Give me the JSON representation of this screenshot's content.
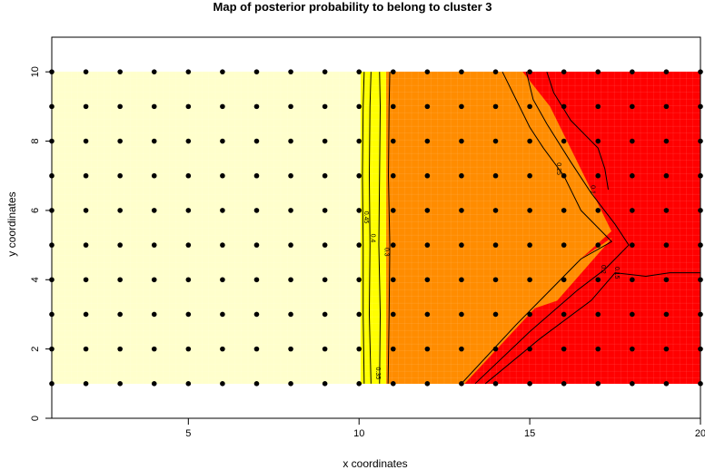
{
  "chart_data": {
    "type": "heatmap",
    "title": "Map of posterior probability to belong to cluster  3",
    "xlabel": "x coordinates",
    "ylabel": "y coordinates",
    "xlim": [
      1,
      20
    ],
    "ylim": [
      0,
      11
    ],
    "x_ticks": [
      5,
      10,
      15,
      20
    ],
    "y_ticks": [
      0,
      2,
      4,
      6,
      8,
      10
    ],
    "grid_extent": {
      "x": [
        1,
        20
      ],
      "y": [
        1,
        10
      ]
    },
    "points": {
      "x": [
        1,
        2,
        3,
        4,
        5,
        6,
        7,
        8,
        9,
        10,
        11,
        12,
        13,
        14,
        15,
        16,
        17,
        18,
        19,
        20
      ],
      "y": [
        1,
        2,
        3,
        4,
        5,
        6,
        7,
        8,
        9,
        10
      ]
    },
    "regions": [
      {
        "name": "lowest",
        "color": "#FFFFCC",
        "polygon": [
          [
            1,
            1
          ],
          [
            10.05,
            1
          ],
          [
            10.05,
            10
          ],
          [
            1,
            10
          ]
        ]
      },
      {
        "name": "low",
        "color": "#FFFF00",
        "polygon": [
          [
            10.05,
            1
          ],
          [
            10.8,
            1
          ],
          [
            10.8,
            10
          ],
          [
            10.05,
            10
          ]
        ]
      },
      {
        "name": "mid",
        "color": "#FF8C00",
        "polygon": [
          [
            10.8,
            1
          ],
          [
            13.1,
            1
          ],
          [
            16.5,
            4.6
          ],
          [
            17.4,
            5.4
          ],
          [
            15.6,
            9
          ],
          [
            14.8,
            10
          ],
          [
            10.8,
            10
          ]
        ]
      },
      {
        "name": "high",
        "color": "#FF0000",
        "polygon": [
          [
            13.1,
            1
          ],
          [
            20,
            1
          ],
          [
            20,
            10
          ],
          [
            14.8,
            10
          ],
          [
            15.6,
            9
          ],
          [
            17.4,
            5.4
          ],
          [
            16.5,
            4.6
          ]
        ]
      },
      {
        "name": "mid-wedge-1",
        "color": "#FF8C00",
        "polygon": [
          [
            14.6,
            3
          ],
          [
            15.8,
            3.4
          ],
          [
            17.4,
            5.2
          ],
          [
            16.2,
            4.4
          ]
        ]
      },
      {
        "name": "mid-wedge-2",
        "color": "#FF8C00",
        "polygon": [
          [
            15.2,
            8.5
          ],
          [
            15.6,
            8.4
          ],
          [
            15.4,
            8.8
          ]
        ]
      }
    ],
    "contours": [
      {
        "label": "0.45",
        "points": [
          [
            10.15,
            1
          ],
          [
            10.12,
            3
          ],
          [
            10.12,
            5
          ],
          [
            10.1,
            7
          ],
          [
            10.12,
            9
          ],
          [
            10.15,
            10
          ]
        ],
        "label_at": [
          10.15,
          5.8
        ]
      },
      {
        "label": "0.4",
        "points": [
          [
            10.35,
            1
          ],
          [
            10.3,
            3
          ],
          [
            10.32,
            5
          ],
          [
            10.3,
            7
          ],
          [
            10.32,
            9
          ],
          [
            10.35,
            10
          ]
        ],
        "label_at": [
          10.35,
          5.2
        ]
      },
      {
        "label": "0.35",
        "points": [
          [
            10.6,
            1
          ],
          [
            10.62,
            3
          ],
          [
            10.58,
            5
          ],
          [
            10.6,
            7
          ],
          [
            10.62,
            9
          ],
          [
            10.6,
            10
          ]
        ],
        "label_at": [
          10.5,
          1.3
        ]
      },
      {
        "label": "0.3",
        "points": [
          [
            10.85,
            1
          ],
          [
            10.88,
            3
          ],
          [
            10.9,
            5
          ],
          [
            10.86,
            7
          ],
          [
            10.88,
            9
          ],
          [
            10.9,
            10
          ]
        ],
        "label_at": [
          10.75,
          4.8
        ]
      },
      {
        "label": "0.25",
        "points": [
          [
            13.0,
            1
          ],
          [
            14.6,
            2.7
          ],
          [
            15.8,
            3.9
          ],
          [
            16.5,
            4.6
          ],
          [
            17.4,
            5.1
          ],
          [
            16.5,
            6.0
          ],
          [
            16.0,
            7.0
          ],
          [
            15.4,
            7.8
          ],
          [
            15.0,
            8.4
          ],
          [
            14.6,
            9.2
          ],
          [
            14.2,
            10
          ]
        ],
        "label_at": [
          15.8,
          7.2
        ]
      },
      {
        "label": "0.2",
        "points": [
          [
            13.4,
            1
          ],
          [
            15.0,
            2.5
          ],
          [
            16.4,
            3.7
          ],
          [
            17.2,
            4.3
          ],
          [
            17.9,
            5.0
          ],
          [
            17.5,
            5.6
          ],
          [
            16.8,
            6.5
          ],
          [
            16.2,
            7.4
          ],
          [
            15.5,
            8.5
          ],
          [
            15.1,
            9.2
          ],
          [
            14.9,
            10
          ]
        ],
        "label_at": [
          17.1,
          4.3
        ]
      },
      {
        "label": "0.15",
        "points": [
          [
            13.7,
            1
          ],
          [
            15.3,
            2.3
          ],
          [
            16.8,
            3.4
          ],
          [
            17.5,
            4.2
          ],
          [
            18.4,
            4.1
          ],
          [
            19.1,
            4.2
          ],
          [
            20,
            4.2
          ]
        ],
        "label_at": [
          17.5,
          4.2
        ]
      },
      {
        "label": "0.1",
        "points": [
          [
            15.5,
            10
          ],
          [
            15.7,
            9.4
          ],
          [
            16.2,
            8.6
          ],
          [
            17.0,
            7.8
          ],
          [
            17.2,
            7.2
          ],
          [
            17.3,
            6.6
          ]
        ],
        "label_at": [
          16.8,
          6.6
        ]
      }
    ]
  }
}
